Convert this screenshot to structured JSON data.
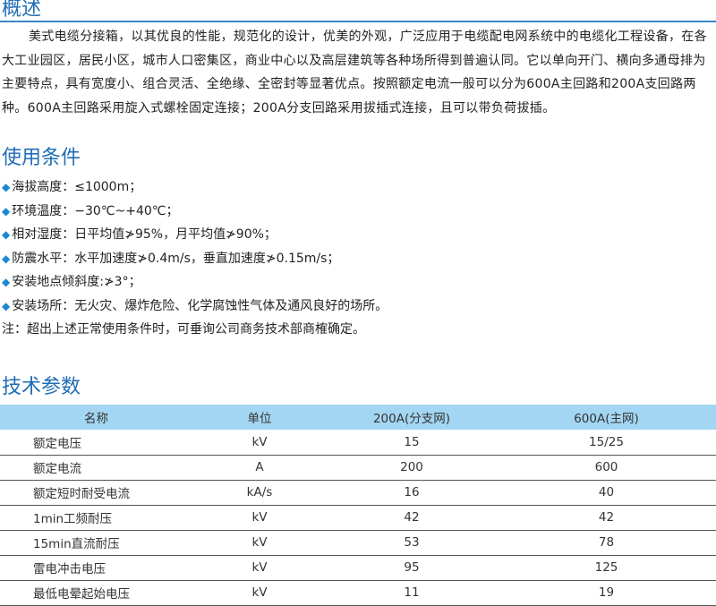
{
  "overview": {
    "title": "概述",
    "text": "美式电缆分接箱，以其优良的性能，规范化的设计，优美的外观，广泛应用于电缆配电网系统中的电缆化工程设备，在各大工业园区，居民小区，城市人口密集区，商业中心以及高层建筑等各种场所得到普遍认同。它以单向开门、横向多通母排为主要特点，具有宽度小、组合灵活、全绝缘、全密封等显著优点。按照额定电流一般可以分为600A主回路和200A支回路两种。600A主回路采用旋入式螺栓固定连接；200A分支回路采用拔插式连接，且可以带负荷拔插。"
  },
  "conditions": {
    "title": "使用条件",
    "bullet_icon": "diamond-icon",
    "items": [
      "海拔高度：≤1000m；",
      "环境温度：−30℃~+40℃；",
      "相对湿度：日平均值≯95%，月平均值≯90%；",
      "防震水平：水平加速度≯0.4m/s，垂直加速度≯0.15m/s；",
      "安装地点倾斜度:≯3°；",
      "安装场所：无火灾、爆炸危险、化学腐蚀性气体及通风良好的场所。"
    ],
    "note": "注：超出上述正常使用条件时，可垂询公司商务技术部商榷确定。"
  },
  "params": {
    "title": "技术参数",
    "headers": [
      "名称",
      "单位",
      "200A(分支网)",
      "600A(主网)"
    ],
    "rows": [
      [
        "额定电压",
        "kV",
        "15",
        "15/25"
      ],
      [
        "额定电流",
        "A",
        "200",
        "600"
      ],
      [
        "额定短时耐受电流",
        "kA/s",
        "16",
        "40"
      ],
      [
        "1min工频耐压",
        "kV",
        "42",
        "42"
      ],
      [
        "15min直流耐压",
        "kV",
        "53",
        "78"
      ],
      [
        "雷电冲击电压",
        "kV",
        "95",
        "125"
      ],
      [
        "最低电晕起始电压",
        "kV",
        "11",
        "19"
      ]
    ]
  },
  "colors": {
    "heading": "#1f6db4",
    "table_header": "#a3d6f2"
  }
}
